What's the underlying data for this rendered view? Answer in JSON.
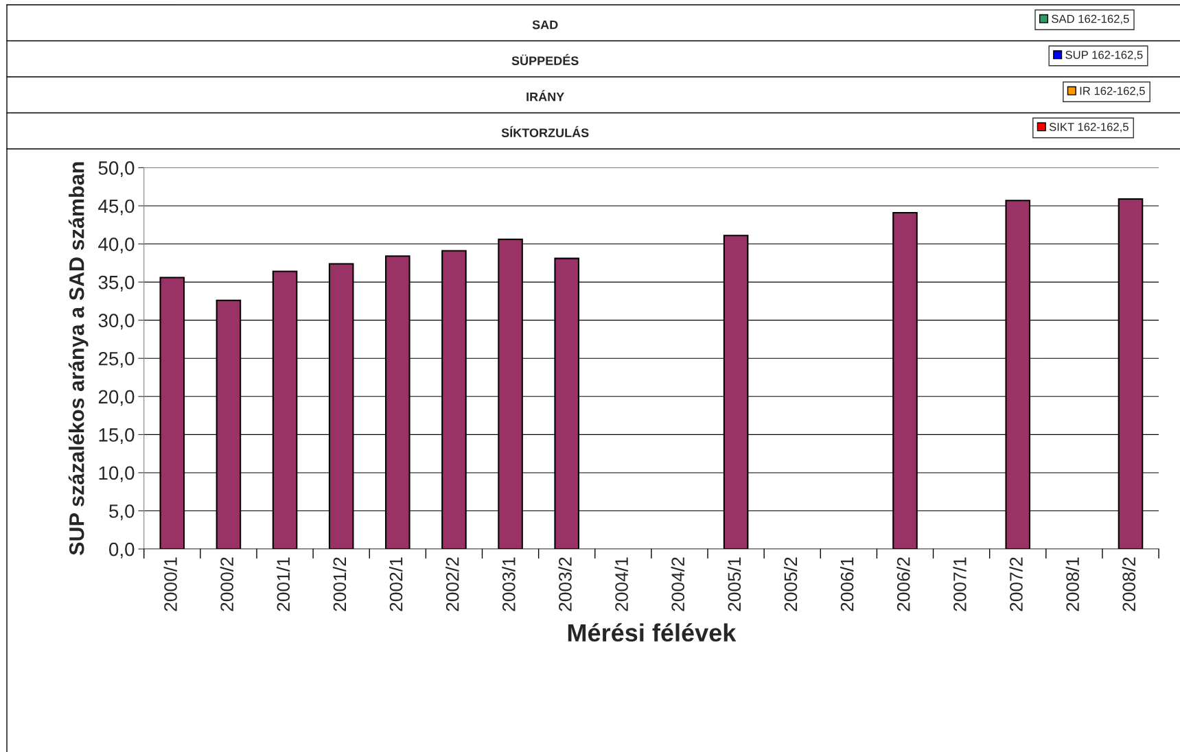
{
  "chart_data": {
    "type": "bar",
    "categories": [
      "2000/1",
      "2000/2",
      "2001/1",
      "2001/2",
      "2002/1",
      "2002/2",
      "2003/1",
      "2003/2",
      "2004/1",
      "2004/2",
      "2005/1",
      "2005/2",
      "2006/1",
      "2006/2",
      "2007/1",
      "2007/2",
      "2008/1",
      "2008/2"
    ],
    "series": [
      {
        "color": "#993366",
        "values": [
          35.6,
          32.6,
          36.4,
          37.4,
          38.4,
          39.1,
          40.6,
          38.1,
          null,
          null,
          41.1,
          null,
          null,
          44.1,
          null,
          45.7,
          null,
          45.9
        ]
      },
      {
        "name": "SAD 162-162,5",
        "color": "#339966",
        "values": [
          null,
          null,
          null,
          null,
          null,
          null,
          null,
          null,
          null,
          null,
          null,
          null,
          null,
          null,
          null,
          null,
          null,
          null
        ]
      },
      {
        "name": "SUP 162-162,5",
        "color": "#0000ff",
        "values": [
          null,
          null,
          null,
          null,
          null,
          null,
          null,
          null,
          null,
          null,
          null,
          null,
          null,
          null,
          null,
          null,
          null,
          null
        ]
      },
      {
        "name": "IR 162-162,5",
        "color": "#ff9900",
        "values": [
          null,
          null,
          null,
          null,
          null,
          null,
          null,
          null,
          null,
          null,
          null,
          null,
          null,
          null,
          null,
          null,
          null,
          null
        ]
      },
      {
        "name": "SIKT 162-162,5",
        "color": "#ff0000",
        "values": [
          null,
          null,
          null,
          null,
          null,
          null,
          null,
          null,
          null,
          null,
          null,
          null,
          null,
          null,
          null,
          null,
          null,
          null
        ]
      }
    ],
    "annotations": [
      "SAD",
      "SÜPPEDÉS",
      "IRÁNY",
      "SÍKTORZULÁS"
    ],
    "xlabel": "Mérési félévek",
    "ylabel": "SUP százalékos aránya a SAD számban",
    "ylim": [
      0,
      50
    ],
    "yticks": [
      {
        "value": 0,
        "label": "0,0"
      },
      {
        "value": 5,
        "label": "5,0"
      },
      {
        "value": 10,
        "label": "10,0"
      },
      {
        "value": 15,
        "label": "15,0"
      },
      {
        "value": 20,
        "label": "20,0"
      },
      {
        "value": 25,
        "label": "25,0"
      },
      {
        "value": 30,
        "label": "30,0"
      },
      {
        "value": 35,
        "label": "35,0"
      },
      {
        "value": 40,
        "label": "40,0"
      },
      {
        "value": 45,
        "label": "45,0"
      },
      {
        "value": 50,
        "label": "50,0"
      }
    ],
    "grid": "y",
    "legend": "top right"
  }
}
